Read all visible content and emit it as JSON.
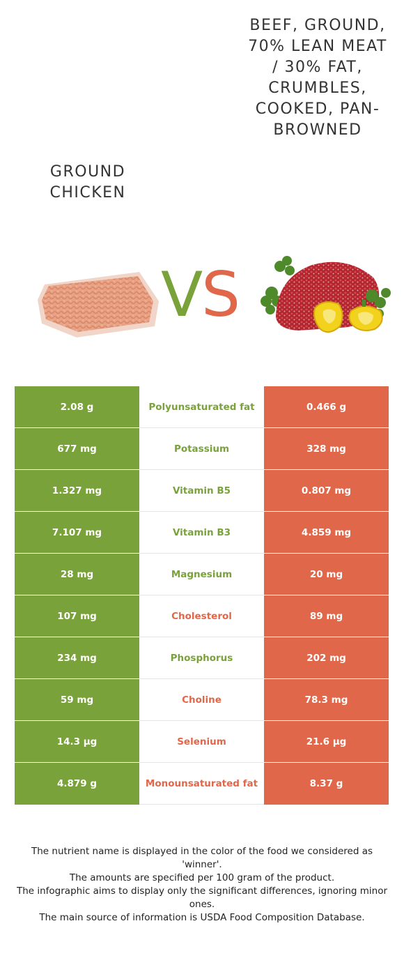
{
  "header": {
    "left_food": "Ground chicken",
    "right_food": "Beef, ground, 70% lean meat / 30% fat, crumbles, cooked, pan-browned",
    "vs_v": "V",
    "vs_s": "S"
  },
  "colors": {
    "left": "#7aa23a",
    "right": "#e1674a"
  },
  "rows": [
    {
      "left": "2.08 g",
      "nutrient": "Polyunsaturated fat",
      "right": "0.466 g",
      "winner": "left"
    },
    {
      "left": "677 mg",
      "nutrient": "Potassium",
      "right": "328 mg",
      "winner": "left"
    },
    {
      "left": "1.327 mg",
      "nutrient": "Vitamin B5",
      "right": "0.807 mg",
      "winner": "left"
    },
    {
      "left": "7.107 mg",
      "nutrient": "Vitamin B3",
      "right": "4.859 mg",
      "winner": "left"
    },
    {
      "left": "28 mg",
      "nutrient": "Magnesium",
      "right": "20 mg",
      "winner": "left"
    },
    {
      "left": "107 mg",
      "nutrient": "Cholesterol",
      "right": "89 mg",
      "winner": "right"
    },
    {
      "left": "234 mg",
      "nutrient": "Phosphorus",
      "right": "202 mg",
      "winner": "left"
    },
    {
      "left": "59 mg",
      "nutrient": "Choline",
      "right": "78.3 mg",
      "winner": "right"
    },
    {
      "left": "14.3 µg",
      "nutrient": "Selenium",
      "right": "21.6 µg",
      "winner": "right"
    },
    {
      "left": "4.879 g",
      "nutrient": "Monounsaturated fat",
      "right": "8.37 g",
      "winner": "right"
    }
  ],
  "footer": {
    "line1": "The nutrient name is displayed in the color of the food we considered as 'winner'.",
    "line2": "The amounts are specified per 100 gram of the product.",
    "line3": "The infographic aims to display only the significant differences, ignoring minor ones.",
    "line4": "The main source of information is USDA Food Composition Database."
  }
}
